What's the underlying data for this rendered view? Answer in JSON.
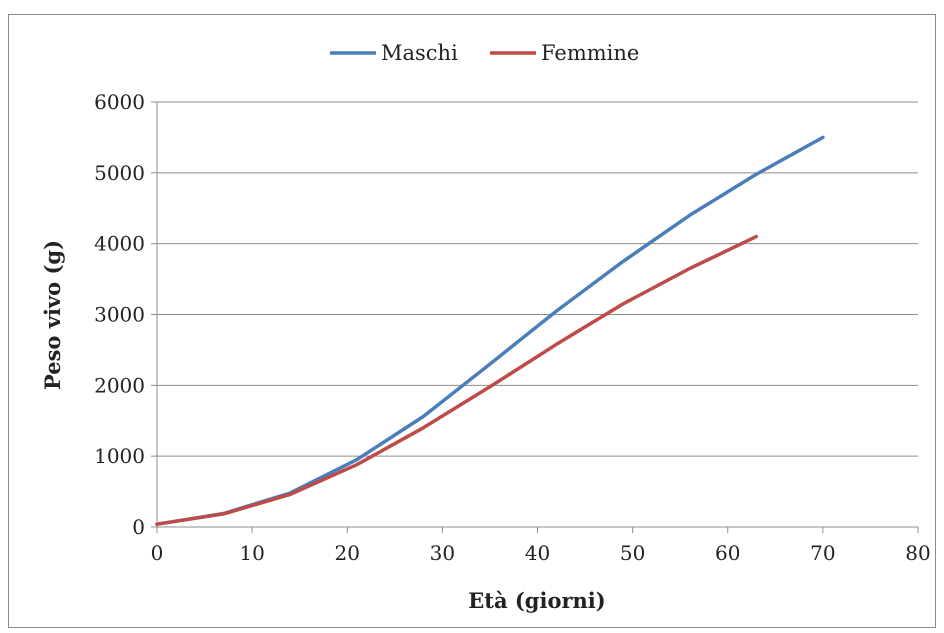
{
  "chart_data": {
    "type": "line",
    "title": "",
    "xlabel": "Età (giorni)",
    "ylabel": "Peso vivo (g)",
    "xlim": [
      0,
      80
    ],
    "ylim": [
      0,
      6000
    ],
    "xticks": [
      0,
      10,
      20,
      30,
      40,
      50,
      60,
      70,
      80
    ],
    "yticks": [
      0,
      1000,
      2000,
      3000,
      4000,
      5000,
      6000
    ],
    "grid": "horizontal",
    "legend_position": "top-center",
    "series": [
      {
        "name": "Maschi",
        "color": "#4a7ebb",
        "x": [
          0,
          7,
          14,
          21,
          28,
          35,
          42,
          49,
          56,
          63,
          70
        ],
        "y": [
          40,
          190,
          480,
          950,
          1560,
          2300,
          3050,
          3750,
          4400,
          4980,
          5500
        ]
      },
      {
        "name": "Femmine",
        "color": "#be4b48",
        "x": [
          0,
          7,
          14,
          21,
          28,
          35,
          42,
          49,
          56,
          63
        ],
        "y": [
          40,
          185,
          460,
          880,
          1400,
          1980,
          2580,
          3150,
          3650,
          4100
        ]
      }
    ]
  }
}
